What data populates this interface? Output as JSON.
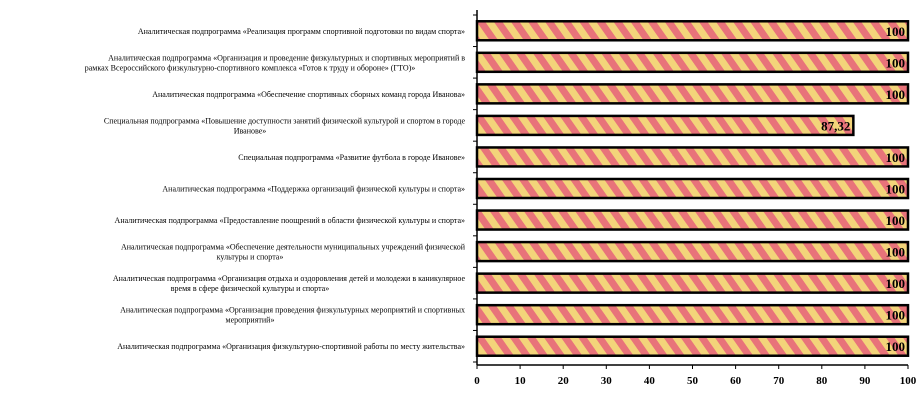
{
  "chart_data": {
    "type": "bar",
    "orientation": "horizontal",
    "categories": [
      [
        "Аналитическая подпрограмма «Реализация программ спортивной подготовки по видам спорта»"
      ],
      [
        "Аналитическая подпрограмма «Организация и проведение физкультурных и спортивных мероприятий в",
        "рамках Всероссийского физкультурно-спортивного комплекса «Готов к труду и обороне» (ГТО)»"
      ],
      [
        "Аналитическая подпрограмма «Обеспечение спортивных сборных команд города Иванова»"
      ],
      [
        "Специальная подпрограмма «Повышение доступности занятий физической культурой и спортом в городе",
        "Иванове»"
      ],
      [
        "Специальная подпрограмма «Развитие футбола в городе Иванове»"
      ],
      [
        "Аналитическая подпрограмма «Поддержка организаций физической культуры и спорта»"
      ],
      [
        "Аналитическая подпрограмма «Предоставление поощрений в области физической культуры и спорта»"
      ],
      [
        "Аналитическая подпрограмма «Обеспечение деятельности муниципальных учреждений физической",
        "культуры и спорта»"
      ],
      [
        "Аналитическая подпрограмма «Организация отдыха и оздоровления детей и молодежи в каникулярное",
        "время в сфере физической культуры и спорта»"
      ],
      [
        "Аналитическая подпрограмма «Организация проведения физкультурных мероприятий и спортивных",
        "мероприятий»"
      ],
      [
        "Аналитическая подпрограмма «Организация физкультурно-спортивной работы по месту жительства»"
      ]
    ],
    "values": [
      100,
      100,
      100,
      87.32,
      100,
      100,
      100,
      100,
      100,
      100,
      100
    ],
    "data_labels": [
      "100",
      "100",
      "100",
      "87,32",
      "100",
      "100",
      "100",
      "100",
      "100",
      "100",
      "100"
    ],
    "xlim": [
      0,
      100
    ],
    "xticks": [
      0,
      10,
      20,
      30,
      40,
      50,
      60,
      70,
      80,
      90,
      100
    ],
    "grid": false,
    "legend": "none",
    "colors": {
      "bar_stripe_light": "#f3d47a",
      "bar_stripe_dark": "#e8737a",
      "bar_outline": "#000000",
      "axis": "#000000"
    }
  }
}
